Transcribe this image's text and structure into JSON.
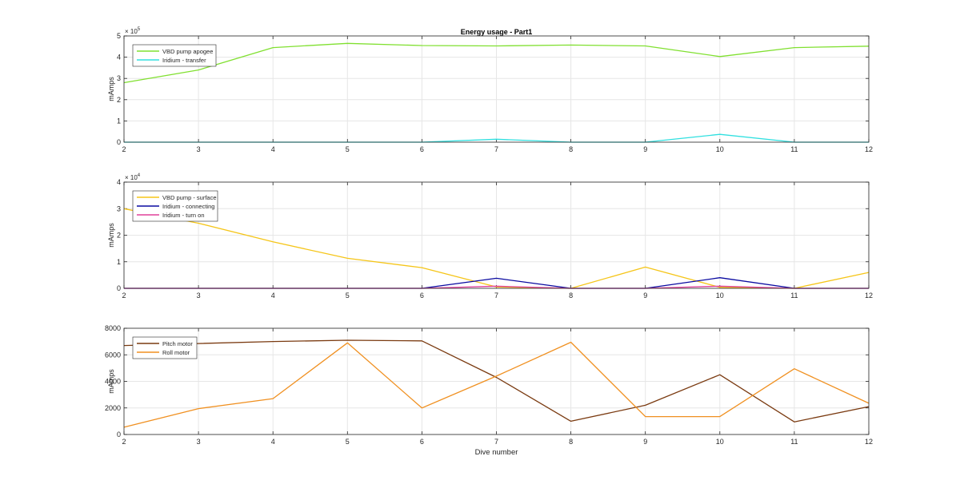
{
  "figure": {
    "title": "Energy usage - Part1",
    "xlabel": "Dive number"
  },
  "chart_data": [
    {
      "type": "line",
      "title": "Energy usage - Part1",
      "xlabel": "",
      "ylabel": "mAmps",
      "exponent_label": "× 10",
      "exponent_power": "5",
      "x": [
        2,
        3,
        4,
        5,
        6,
        7,
        8,
        9,
        10,
        11,
        12
      ],
      "xlim": [
        2,
        12
      ],
      "ylim": [
        0,
        500000
      ],
      "yticks": [
        0,
        100000,
        200000,
        300000,
        400000,
        500000
      ],
      "ytick_labels": [
        "0",
        "1",
        "2",
        "3",
        "4",
        "5"
      ],
      "grid": true,
      "legend": "top-left",
      "series": [
        {
          "name": "VBD pump apogee",
          "color": "#80e030",
          "values": [
            280000,
            340000,
            445000,
            465000,
            455000,
            453000,
            457000,
            453000,
            403000,
            445000,
            452000
          ]
        },
        {
          "name": "Iridium - transfer",
          "color": "#30e0e0",
          "values": [
            0,
            0,
            0,
            0,
            0,
            14000,
            0,
            0,
            37000,
            0,
            0
          ]
        }
      ]
    },
    {
      "type": "line",
      "title": "",
      "xlabel": "",
      "ylabel": "mAmps",
      "exponent_label": "× 10",
      "exponent_power": "4",
      "x": [
        2,
        3,
        4,
        5,
        6,
        7,
        8,
        9,
        10,
        11,
        12
      ],
      "xlim": [
        2,
        12
      ],
      "ylim": [
        0,
        40000
      ],
      "yticks": [
        0,
        10000,
        20000,
        30000,
        40000
      ],
      "ytick_labels": [
        "0",
        "1",
        "2",
        "3",
        "4"
      ],
      "grid": true,
      "legend": "top-left",
      "series": [
        {
          "name": "VBD pump - surface",
          "color": "#f5c518",
          "values": [
            30000,
            24500,
            17500,
            11300,
            7800,
            500,
            0,
            8000,
            400,
            0,
            6000
          ]
        },
        {
          "name": "Iridium - connecting",
          "color": "#0a0aa0",
          "values": [
            0,
            0,
            0,
            0,
            0,
            3800,
            0,
            0,
            4000,
            0,
            0
          ]
        },
        {
          "name": "Iridium - turn on",
          "color": "#e0409a",
          "values": [
            0,
            0,
            0,
            0,
            0,
            800,
            0,
            0,
            800,
            0,
            0
          ]
        }
      ]
    },
    {
      "type": "line",
      "title": "",
      "xlabel": "Dive number",
      "ylabel": "mAmps",
      "x": [
        2,
        3,
        4,
        5,
        6,
        7,
        8,
        9,
        10,
        11,
        12
      ],
      "xlim": [
        2,
        12
      ],
      "ylim": [
        0,
        8000
      ],
      "yticks": [
        0,
        2000,
        4000,
        6000,
        8000
      ],
      "ytick_labels": [
        "0",
        "2000",
        "4000",
        "6000",
        "8000"
      ],
      "grid": true,
      "legend": "top-left",
      "series": [
        {
          "name": "Pitch motor",
          "color": "#7a3a10",
          "values": [
            6700,
            6850,
            7000,
            7100,
            7050,
            4300,
            1000,
            2200,
            4500,
            950,
            2100
          ]
        },
        {
          "name": "Roll motor",
          "color": "#f09020",
          "values": [
            550,
            1950,
            2700,
            6900,
            2000,
            4400,
            6950,
            1350,
            1350,
            4950,
            2350
          ]
        }
      ]
    }
  ]
}
